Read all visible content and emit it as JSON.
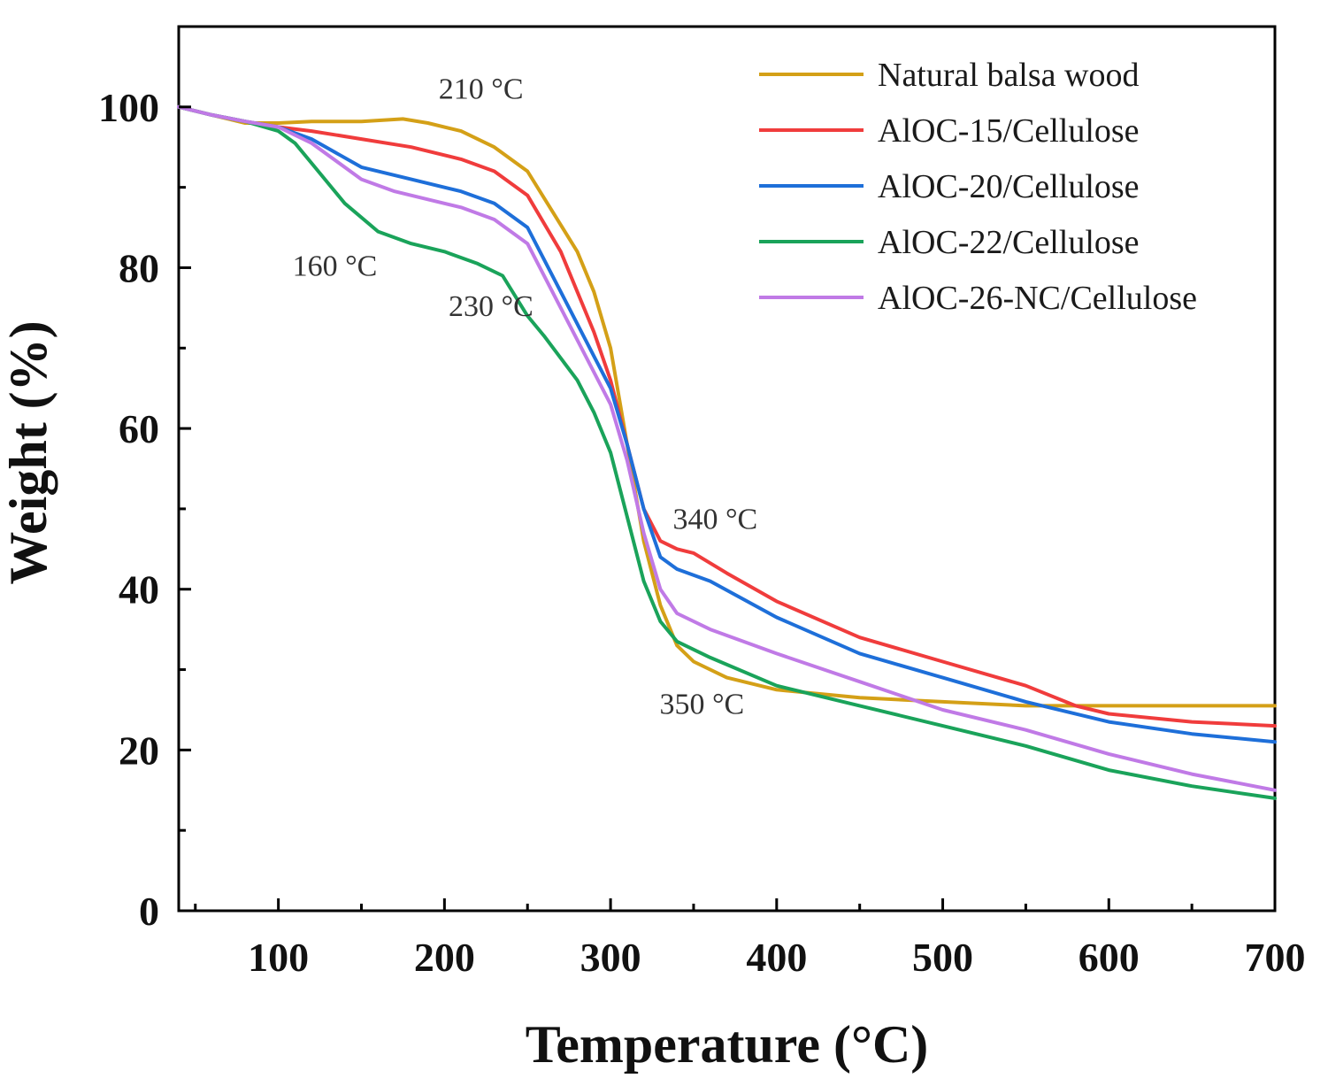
{
  "chart_data": {
    "type": "line",
    "title": "",
    "xlabel": "Temperature (°C)",
    "ylabel": "Weight (%)",
    "xlim": [
      40,
      700
    ],
    "ylim": [
      0,
      110
    ],
    "xticks": [
      100,
      200,
      300,
      400,
      500,
      600,
      700
    ],
    "xtick_labels": [
      "100",
      "200",
      "300",
      "400",
      "500",
      "600",
      "700"
    ],
    "yticks": [
      0,
      20,
      40,
      60,
      80,
      100
    ],
    "ytick_labels": [
      "0",
      "20",
      "40",
      "60",
      "80",
      "100"
    ],
    "grid": false,
    "legend_position": "top-right",
    "series": [
      {
        "name": "Natural balsa wood",
        "color": "#d4a017",
        "x": [
          40,
          60,
          80,
          100,
          120,
          150,
          175,
          190,
          210,
          230,
          250,
          265,
          280,
          290,
          300,
          310,
          320,
          330,
          340,
          350,
          370,
          400,
          450,
          500,
          550,
          600,
          650,
          700
        ],
        "y": [
          100,
          99,
          98,
          98,
          98.2,
          98.2,
          98.5,
          98,
          97,
          95,
          92,
          87,
          82,
          77,
          70,
          58,
          46,
          38,
          33,
          31,
          29,
          27.5,
          26.5,
          26,
          25.5,
          25.5,
          25.5,
          25.5
        ]
      },
      {
        "name": "AlOC-15/Cellulose",
        "color": "#f03c3c",
        "x": [
          40,
          60,
          80,
          100,
          120,
          150,
          180,
          210,
          230,
          250,
          270,
          290,
          300,
          310,
          320,
          330,
          340,
          350,
          370,
          400,
          450,
          500,
          550,
          580,
          600,
          650,
          700
        ],
        "y": [
          100,
          99,
          98.2,
          97.5,
          97,
          96,
          95,
          93.5,
          92,
          89,
          82,
          72,
          66,
          58,
          50,
          46,
          45,
          44.5,
          42,
          38.5,
          34,
          31,
          28,
          25.5,
          24.5,
          23.5,
          23
        ]
      },
      {
        "name": "AlOC-20/Cellulose",
        "color": "#1e6fd9",
        "x": [
          40,
          60,
          80,
          100,
          120,
          150,
          180,
          210,
          230,
          250,
          270,
          290,
          300,
          310,
          320,
          330,
          340,
          360,
          400,
          450,
          500,
          550,
          600,
          650,
          700
        ],
        "y": [
          100,
          99,
          98.2,
          97.5,
          96,
          92.5,
          91,
          89.5,
          88,
          85,
          77,
          69,
          65,
          58,
          50,
          44,
          42.5,
          41,
          36.5,
          32,
          29,
          26,
          23.5,
          22,
          21
        ]
      },
      {
        "name": "AlOC-22/Cellulose",
        "color": "#1aa35a",
        "x": [
          40,
          60,
          80,
          100,
          110,
          120,
          140,
          160,
          180,
          200,
          220,
          235,
          250,
          260,
          280,
          290,
          300,
          310,
          320,
          330,
          340,
          360,
          400,
          450,
          500,
          550,
          600,
          650,
          700
        ],
        "y": [
          100,
          99,
          98.2,
          97,
          95.5,
          93,
          88,
          84.5,
          83,
          82,
          80.5,
          79,
          74,
          71.5,
          66,
          62,
          57,
          49,
          41,
          36,
          33.5,
          31.5,
          28,
          25.5,
          23,
          20.5,
          17.5,
          15.5,
          14
        ]
      },
      {
        "name": "AlOC-26-NC/Cellulose",
        "color": "#c07ae6",
        "x": [
          40,
          60,
          80,
          100,
          120,
          150,
          170,
          190,
          210,
          230,
          250,
          270,
          290,
          300,
          310,
          320,
          330,
          340,
          360,
          400,
          450,
          500,
          550,
          600,
          650,
          700
        ],
        "y": [
          100,
          99,
          98.2,
          97.5,
          95.5,
          91,
          89.5,
          88.5,
          87.5,
          86,
          83,
          75,
          67,
          63,
          56,
          47,
          40,
          37,
          35,
          32,
          28.5,
          25,
          22.5,
          19.5,
          17,
          15
        ]
      }
    ],
    "annotations": [
      {
        "text": "210 °C",
        "x": 222,
        "y": 101
      },
      {
        "text": "160 °C",
        "x": 134,
        "y": 79
      },
      {
        "text": "230 °C",
        "x": 228,
        "y": 74
      },
      {
        "text": "340 °C",
        "x": 363,
        "y": 47.5
      },
      {
        "text": "350 °C",
        "x": 355,
        "y": 24.5
      }
    ]
  }
}
